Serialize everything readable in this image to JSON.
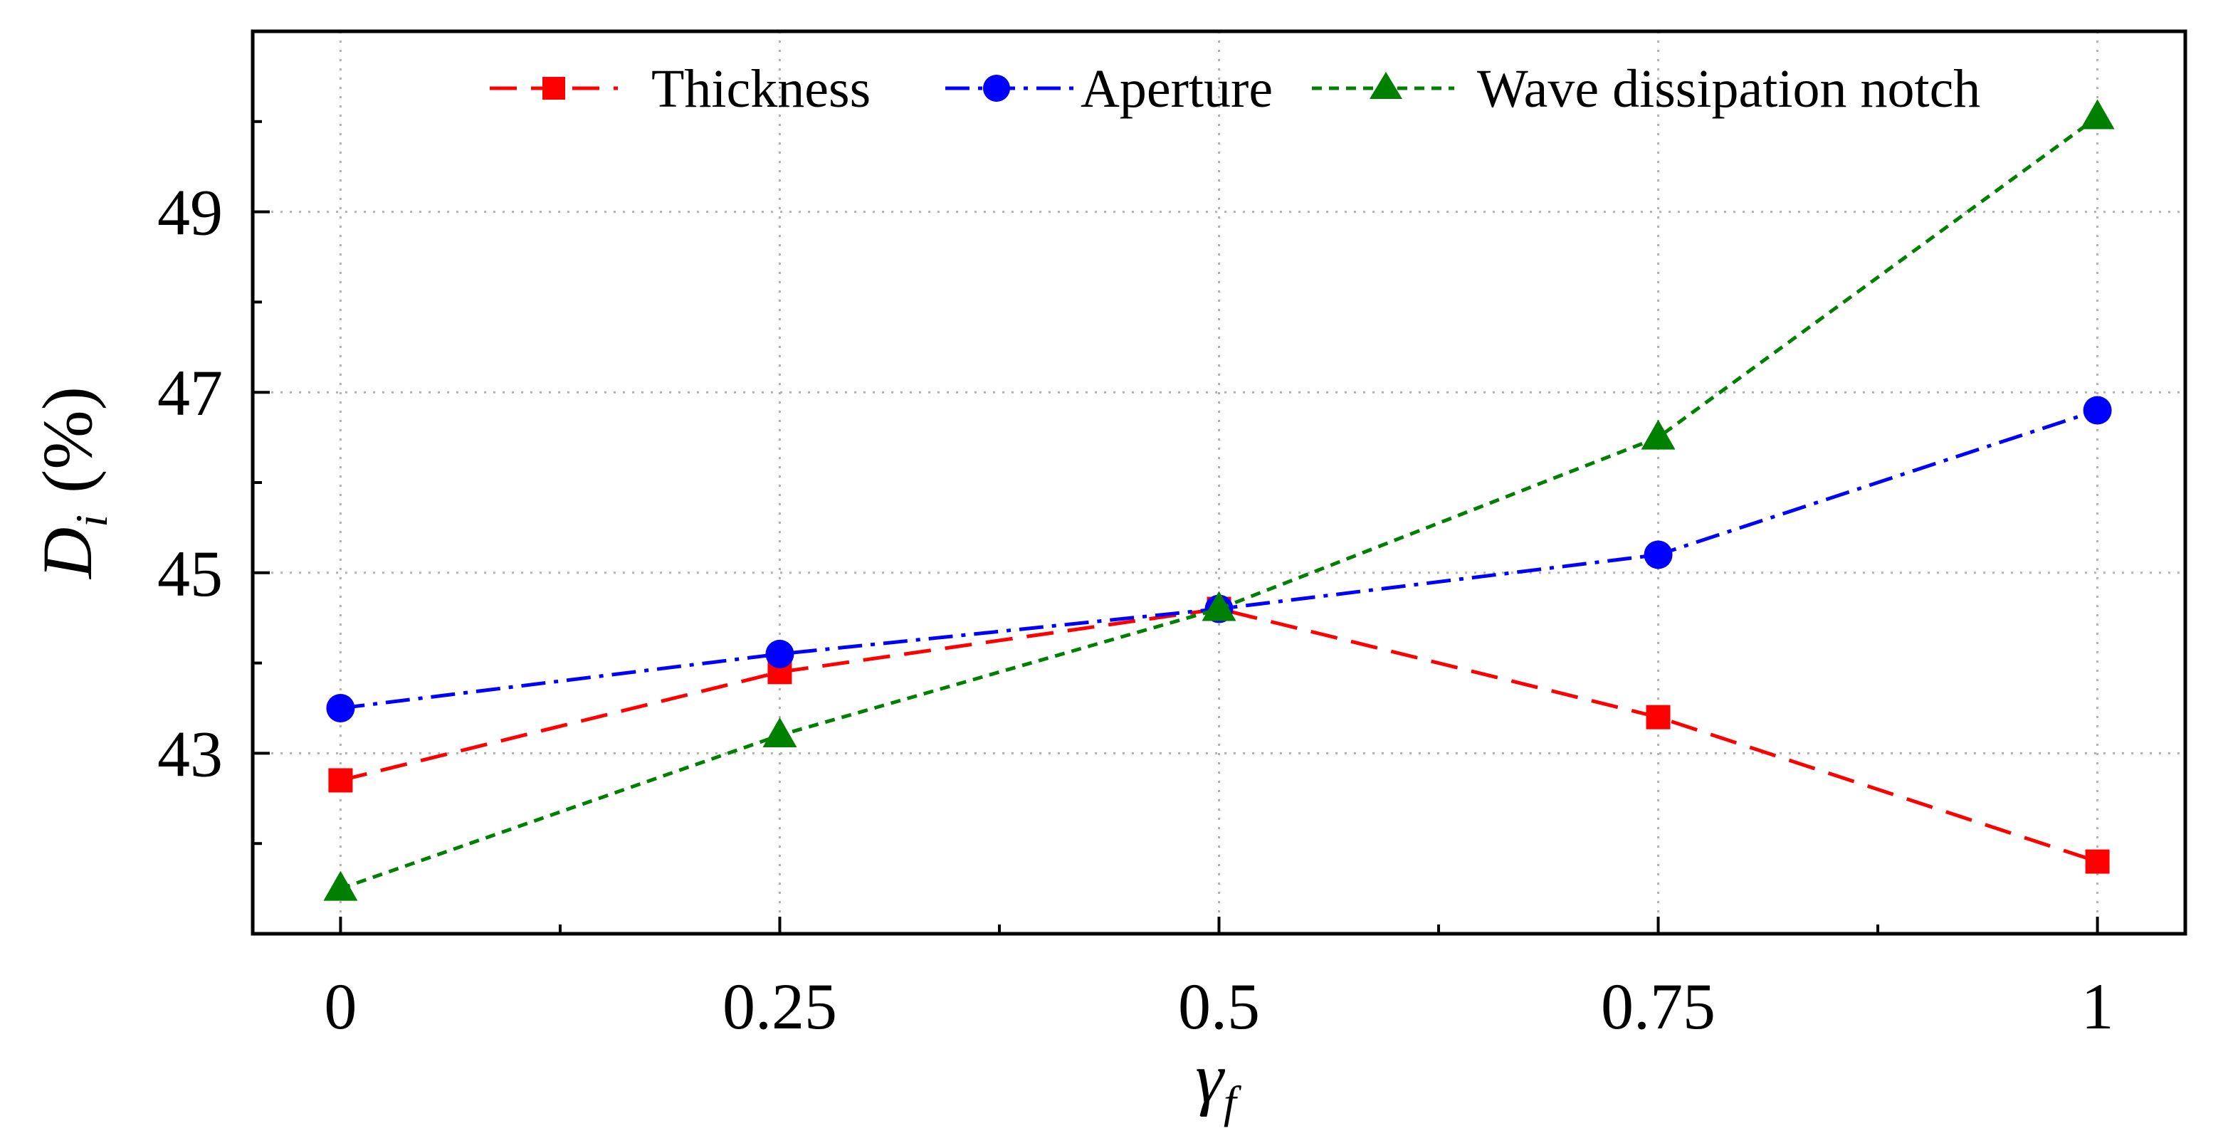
{
  "chart_data": {
    "type": "line",
    "title": "",
    "x": [
      0,
      0.25,
      0.5,
      0.75,
      1
    ],
    "x_tick_labels": [
      "0",
      "0.25",
      "0.5",
      "0.75",
      "1"
    ],
    "xlim": [
      -0.05,
      1.05
    ],
    "ylim": [
      41,
      51
    ],
    "y_ticks": [
      43,
      45,
      47,
      49
    ],
    "y_tick_labels": [
      "43",
      "45",
      "47",
      "49"
    ],
    "xlabel": {
      "symbol": "γ",
      "subscript": "f"
    },
    "ylabel": {
      "symbol": "D",
      "subscript": "i",
      "unit": "(%)"
    },
    "grid": true,
    "legend_position": "top",
    "series": [
      {
        "name": "Thickness",
        "color": "#ff0000",
        "marker": "square",
        "line_style": "dashed",
        "values": [
          42.7,
          43.9,
          44.6,
          43.4,
          41.8
        ]
      },
      {
        "name": "Aperture",
        "color": "#0000ff",
        "marker": "circle",
        "line_style": "dash-dot",
        "values": [
          43.5,
          44.1,
          44.6,
          45.2,
          46.8
        ]
      },
      {
        "name": "Wave dissipation notch",
        "color": "#008000",
        "marker": "triangle",
        "line_style": "dotted-dash",
        "values": [
          41.5,
          43.2,
          44.6,
          46.5,
          50.05
        ]
      }
    ]
  }
}
